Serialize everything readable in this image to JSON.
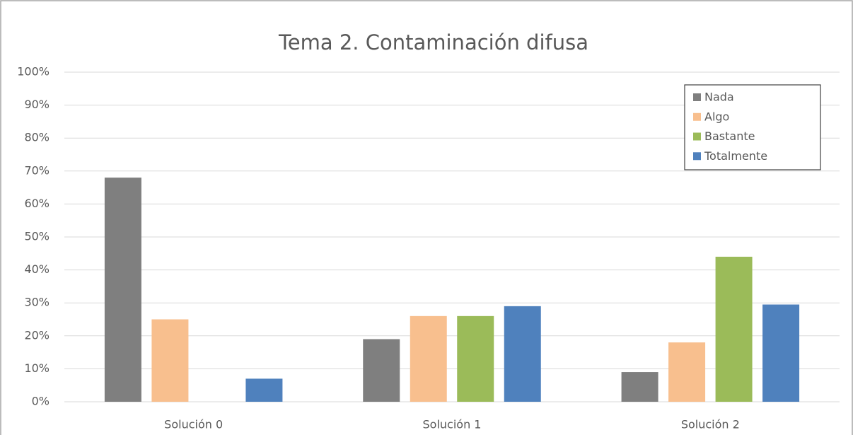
{
  "chart_data": {
    "type": "bar",
    "title": "Tema 2. Contaminación difusa",
    "categories": [
      "Solución 0",
      "Solución 1",
      "Solución 2"
    ],
    "series": [
      {
        "name": "Nada",
        "color": "#7f7f7f",
        "values": [
          68,
          19,
          9
        ]
      },
      {
        "name": "Algo",
        "color": "#f8bf8e",
        "values": [
          25,
          26,
          18
        ]
      },
      {
        "name": "Bastante",
        "color": "#9bbb59",
        "values": [
          0,
          26,
          44
        ]
      },
      {
        "name": "Totalmente",
        "color": "#4f81bd",
        "values": [
          7,
          29,
          29.5
        ]
      }
    ],
    "ylim": [
      0,
      100
    ],
    "yticks": [
      {
        "value": 0,
        "label": "0%"
      },
      {
        "value": 10,
        "label": "10%"
      },
      {
        "value": 20,
        "label": "20%"
      },
      {
        "value": 30,
        "label": "30%"
      },
      {
        "value": 40,
        "label": "40%"
      },
      {
        "value": 50,
        "label": "50%"
      },
      {
        "value": 60,
        "label": "60%"
      },
      {
        "value": 70,
        "label": "70%"
      },
      {
        "value": 80,
        "label": "80%"
      },
      {
        "value": 90,
        "label": "90%"
      },
      {
        "value": 100,
        "label": "100%"
      }
    ],
    "grid": true,
    "legend": "upper right"
  }
}
